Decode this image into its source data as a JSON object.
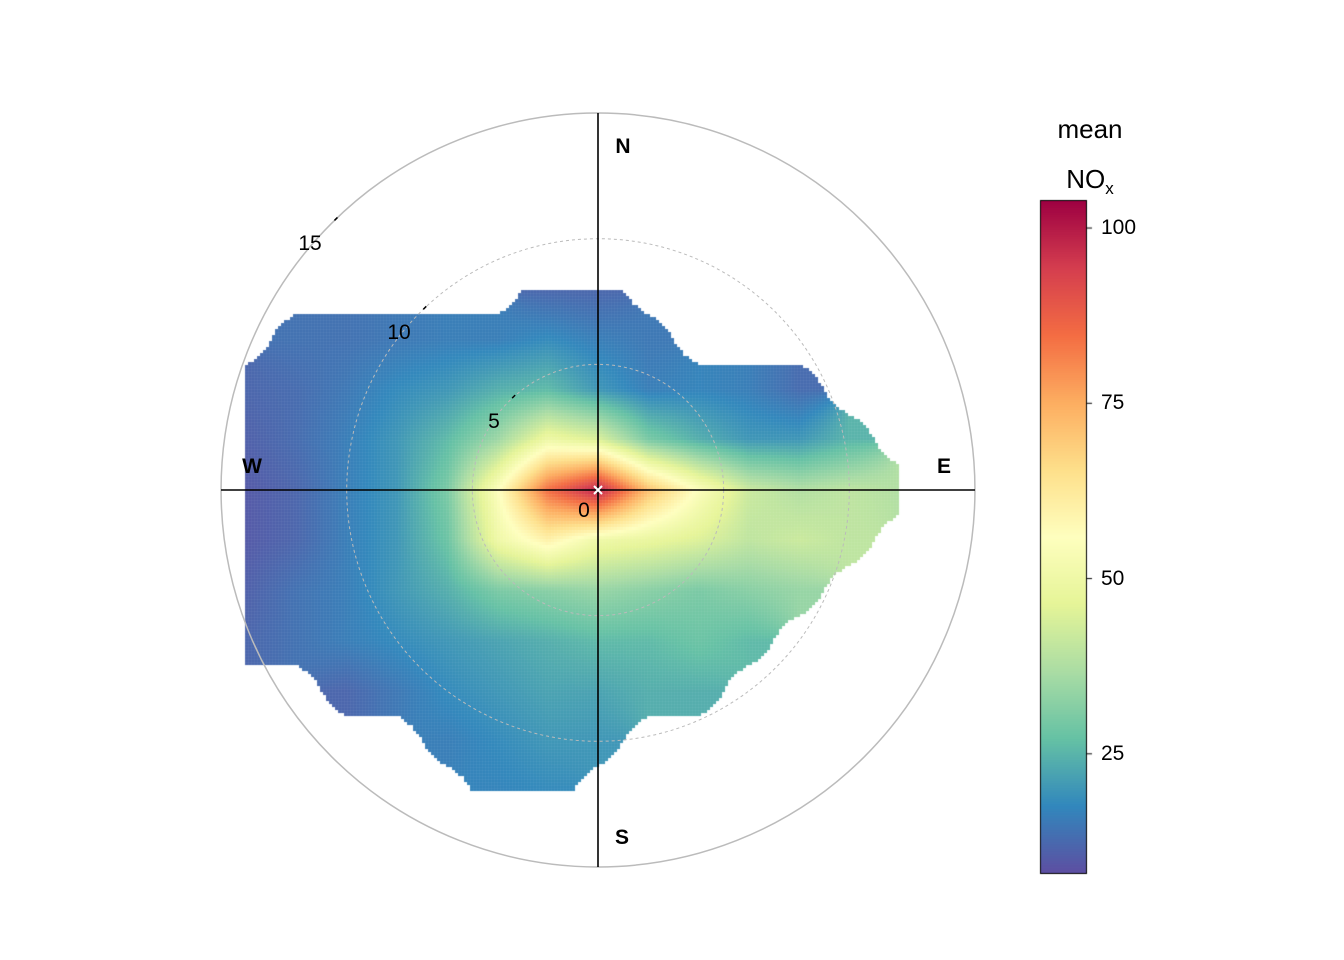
{
  "chart_data": {
    "type": "heatmap",
    "subtype": "polar",
    "variable": "mean NOx",
    "legend": {
      "title_line1": "mean",
      "title_main": "NO",
      "title_sub": "x",
      "ticks": [
        25,
        50,
        75,
        100
      ],
      "tick_labels": [
        "25",
        "50",
        "75",
        "100"
      ],
      "range": [
        8,
        104
      ],
      "placement": "right"
    },
    "palette": [
      "#5E4FA2",
      "#3288BD",
      "#66C2A5",
      "#ABDDA4",
      "#E6F598",
      "#FFFFBF",
      "#FEE08B",
      "#FDAE61",
      "#F46D43",
      "#D53E4F",
      "#9E0142"
    ],
    "radial_axis": {
      "ticks": [
        0,
        5,
        10,
        15
      ],
      "tick_labels": [
        "0",
        "5",
        "10",
        "15"
      ],
      "max": 15
    },
    "directions": {
      "n": "N",
      "e": "E",
      "s": "S",
      "w": "W"
    },
    "grid": {
      "x": [
        -14,
        -12,
        -10,
        -8,
        -6,
        -4,
        -2,
        0,
        2,
        4,
        6,
        8,
        10,
        12
      ],
      "y": [
        8,
        6,
        4,
        2,
        0,
        -2,
        -4,
        -6,
        -8,
        -10,
        -12
      ],
      "values": [
        [
          null,
          null,
          null,
          null,
          null,
          null,
          12,
          12,
          null,
          null,
          null,
          null,
          null,
          null
        ],
        [
          null,
          14,
          14,
          15,
          16,
          16,
          18,
          16,
          15,
          null,
          null,
          null,
          null,
          null
        ],
        [
          12,
          13,
          15,
          18,
          20,
          24,
          26,
          20,
          16,
          17,
          16,
          13,
          null,
          null
        ],
        [
          11,
          13,
          16,
          20,
          26,
          35,
          50,
          45,
          30,
          24,
          20,
          20,
          25,
          null
        ],
        [
          10,
          12,
          16,
          20,
          30,
          55,
          85,
          100,
          72,
          55,
          42,
          38,
          40,
          38
        ],
        [
          10,
          12,
          16,
          20,
          28,
          50,
          60,
          50,
          48,
          45,
          40,
          42,
          40,
          null
        ],
        [
          11,
          14,
          16,
          20,
          24,
          30,
          32,
          34,
          32,
          30,
          32,
          34,
          null,
          null
        ],
        [
          12,
          14,
          16,
          18,
          20,
          22,
          24,
          26,
          26,
          28,
          26,
          null,
          null,
          null
        ],
        [
          null,
          null,
          12,
          15,
          18,
          20,
          22,
          22,
          24,
          24,
          null,
          null,
          null,
          null
        ],
        [
          null,
          null,
          null,
          null,
          16,
          18,
          20,
          20,
          null,
          null,
          null,
          null,
          null,
          null
        ],
        [
          null,
          null,
          null,
          null,
          null,
          17,
          18,
          null,
          null,
          null,
          null,
          null,
          null,
          null
        ]
      ]
    }
  }
}
